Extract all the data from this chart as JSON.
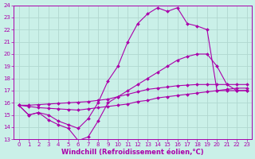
{
  "bg_color": "#caf0e8",
  "grid_color": "#b0d8d0",
  "line_color": "#aa00aa",
  "xlim": [
    -0.5,
    23.5
  ],
  "ylim": [
    13,
    24
  ],
  "xticks": [
    0,
    1,
    2,
    3,
    4,
    5,
    6,
    7,
    8,
    9,
    10,
    11,
    12,
    13,
    14,
    15,
    16,
    17,
    18,
    19,
    20,
    21,
    22,
    23
  ],
  "yticks": [
    13,
    14,
    15,
    16,
    17,
    18,
    19,
    20,
    21,
    22,
    23,
    24
  ],
  "xlabel": "Windchill (Refroidissement éolien,°C)",
  "series": [
    {
      "x": [
        0,
        1,
        2,
        3,
        4,
        5,
        6,
        7,
        8,
        9,
        10,
        11,
        12,
        13,
        14,
        15,
        16,
        17,
        18,
        19,
        20,
        21,
        22,
        23
      ],
      "y": [
        15.8,
        15.7,
        15.6,
        15.55,
        15.5,
        15.45,
        15.4,
        15.5,
        15.6,
        15.7,
        15.8,
        15.9,
        16.1,
        16.2,
        16.4,
        16.5,
        16.6,
        16.7,
        16.8,
        16.9,
        17.0,
        17.1,
        17.2,
        17.2
      ]
    },
    {
      "x": [
        0,
        1,
        2,
        3,
        4,
        5,
        6,
        7,
        8,
        9,
        10,
        11,
        12,
        13,
        14,
        15,
        16,
        17,
        18,
        19,
        20,
        21,
        22,
        23
      ],
      "y": [
        15.8,
        15.8,
        15.85,
        15.9,
        15.95,
        16.0,
        16.05,
        16.1,
        16.2,
        16.3,
        16.5,
        16.7,
        16.9,
        17.1,
        17.2,
        17.3,
        17.4,
        17.45,
        17.5,
        17.5,
        17.5,
        17.5,
        17.5,
        17.5
      ]
    },
    {
      "x": [
        0,
        1,
        2,
        3,
        4,
        5,
        6,
        7,
        8,
        9,
        10,
        11,
        12,
        13,
        14,
        15,
        16,
        17,
        18,
        19,
        20,
        21,
        22,
        23
      ],
      "y": [
        15.8,
        15.0,
        15.2,
        14.6,
        14.2,
        13.9,
        12.9,
        13.2,
        14.5,
        16.0,
        16.5,
        17.0,
        17.5,
        18.0,
        18.5,
        19.0,
        19.5,
        19.8,
        20.0,
        20.0,
        19.0,
        17.5,
        17.0,
        17.0
      ]
    },
    {
      "x": [
        0,
        1,
        2,
        3,
        4,
        5,
        6,
        7,
        8,
        9,
        10,
        11,
        12,
        13,
        14,
        15,
        16,
        17,
        18,
        19,
        20,
        21,
        22,
        23
      ],
      "y": [
        15.8,
        15.0,
        15.2,
        15.0,
        14.5,
        14.2,
        13.9,
        14.7,
        16.0,
        17.8,
        19.0,
        21.0,
        22.5,
        23.3,
        23.8,
        23.5,
        23.8,
        22.5,
        22.3,
        22.0,
        17.0,
        17.0,
        17.0,
        17.0
      ]
    }
  ],
  "tick_fontsize": 5.0,
  "label_fontsize": 6.0
}
